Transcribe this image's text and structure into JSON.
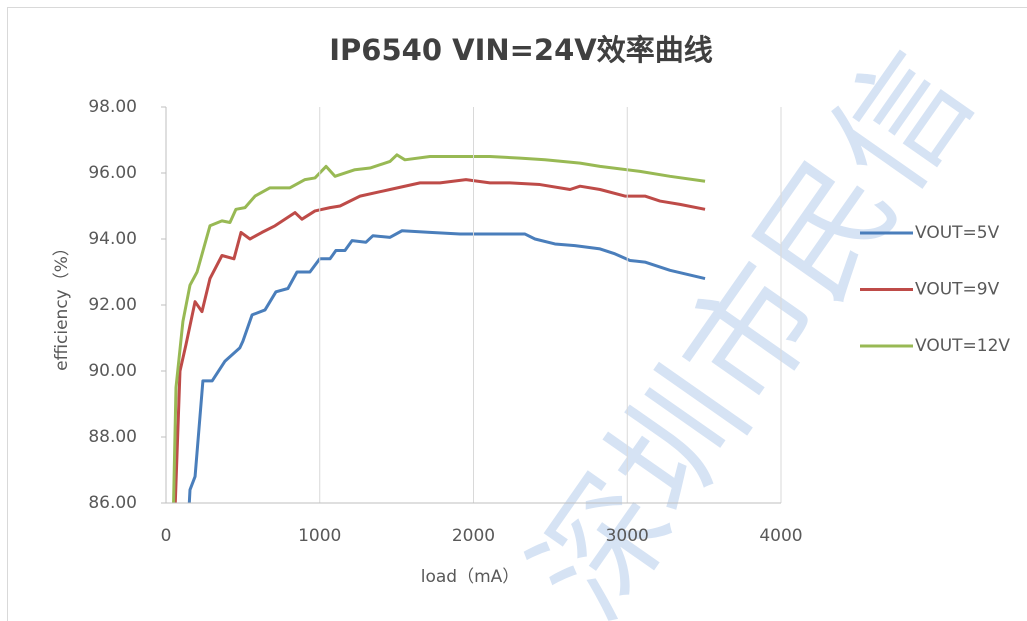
{
  "chart_data": {
    "type": "line",
    "title": "IP6540 VIN=24V效率曲线",
    "xlabel": "load（mA）",
    "ylabel": "efficiency（%）",
    "watermark": "深圳市民信",
    "xlim": [
      0,
      4000
    ],
    "xticks": [
      0,
      1000,
      2000,
      3000,
      4000
    ],
    "ylim": [
      86,
      98
    ],
    "yticks": [
      {
        "value": 86,
        "label": "86.00"
      },
      {
        "value": 88,
        "label": "88.00"
      },
      {
        "value": 90,
        "label": "90.00"
      },
      {
        "value": 92,
        "label": "92.00"
      },
      {
        "value": 94,
        "label": "94.00"
      },
      {
        "value": 96,
        "label": "96.00"
      },
      {
        "value": 98,
        "label": "98.00"
      }
    ],
    "grid": "x",
    "legend": "right",
    "series": [
      {
        "name": "VOUT=5V",
        "color": "#4a7ebb",
        "x": [
          135,
          156,
          189,
          240,
          300,
          384,
          480,
          500,
          560,
          644,
          715,
          793,
          852,
          936,
          1000,
          1067,
          1105,
          1164,
          1210,
          1300,
          1346,
          1457,
          1535,
          1717,
          1912,
          2172,
          2335,
          2400,
          2530,
          2660,
          2823,
          2920,
          3018,
          3115,
          3278,
          3506
        ],
        "values": [
          84.5,
          86.4,
          86.8,
          89.7,
          89.7,
          90.3,
          90.7,
          90.9,
          91.7,
          91.85,
          92.4,
          92.5,
          93.0,
          93.0,
          93.4,
          93.4,
          93.65,
          93.65,
          93.95,
          93.9,
          94.1,
          94.05,
          94.25,
          94.2,
          94.15,
          94.15,
          94.15,
          94.0,
          93.85,
          93.8,
          93.7,
          93.55,
          93.35,
          93.3,
          93.05,
          92.8
        ]
      },
      {
        "name": "VOUT=9V",
        "color": "#be4b48",
        "x": [
          45,
          91,
          130,
          189,
          234,
          286,
          364,
          442,
          488,
          546,
          624,
          709,
          839,
          884,
          969,
          1067,
          1132,
          1262,
          1457,
          1652,
          1782,
          1951,
          2107,
          2237,
          2432,
          2628,
          2693,
          2823,
          2985,
          3115,
          3213,
          3343,
          3506
        ],
        "values": [
          84,
          90.0,
          90.8,
          92.1,
          91.8,
          92.8,
          93.5,
          93.4,
          94.2,
          94.0,
          94.2,
          94.4,
          94.8,
          94.6,
          94.85,
          94.95,
          95.0,
          95.3,
          95.5,
          95.7,
          95.7,
          95.8,
          95.7,
          95.7,
          95.65,
          95.5,
          95.6,
          95.5,
          95.3,
          95.3,
          95.15,
          95.05,
          94.9
        ]
      },
      {
        "name": "VOUT=12V",
        "color": "#98b954",
        "x": [
          40,
          65,
          110,
          156,
          202,
          286,
          364,
          416,
          455,
          514,
          579,
          676,
          806,
          904,
          969,
          1041,
          1099,
          1229,
          1327,
          1457,
          1502,
          1554,
          1717,
          1944,
          2107,
          2302,
          2465,
          2693,
          2823,
          3083,
          3278,
          3506
        ],
        "values": [
          84,
          89.5,
          91.5,
          92.6,
          93.0,
          94.4,
          94.55,
          94.5,
          94.9,
          94.95,
          95.3,
          95.55,
          95.55,
          95.8,
          95.85,
          96.2,
          95.9,
          96.1,
          96.15,
          96.35,
          96.55,
          96.4,
          96.5,
          96.5,
          96.5,
          96.45,
          96.4,
          96.3,
          96.2,
          96.05,
          95.9,
          95.75
        ]
      }
    ]
  }
}
